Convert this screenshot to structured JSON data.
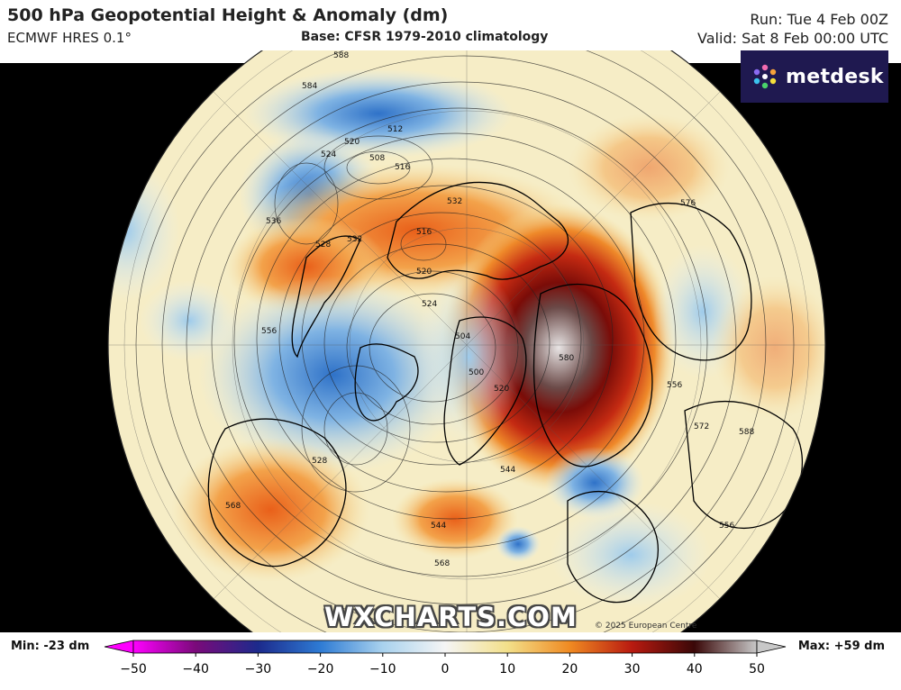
{
  "header": {
    "title": "500 hPa Geopotential Height & Anomaly (dm)",
    "model": "ECMWF HRES 0.1°",
    "base": "Base: CFSR 1979-2010 climatology",
    "run": "Run: Tue 4 Feb 00Z",
    "valid": "Valid: Sat 8 Feb 00:00 UTC"
  },
  "logo": {
    "text": "metdesk",
    "bg": "#1f1950"
  },
  "watermark": "WXCHARTS.COM",
  "copyright": "© 2025 European Centre",
  "colorbar": {
    "min_label": "Min: -23 dm",
    "max_label": "Max: +59 dm",
    "ticks": [
      "−50",
      "−40",
      "−30",
      "−20",
      "−10",
      "0",
      "10",
      "20",
      "30",
      "40",
      "50"
    ],
    "range": [
      -50,
      50
    ],
    "stops": [
      {
        "v": -50,
        "c": "#ff00ff"
      },
      {
        "v": -40,
        "c": "#7a0a7a"
      },
      {
        "v": -30,
        "c": "#1c2a8c"
      },
      {
        "v": -20,
        "c": "#2e7bd4"
      },
      {
        "v": -10,
        "c": "#a9d2ee"
      },
      {
        "v": 0,
        "c": "#f5f5f5"
      },
      {
        "v": 10,
        "c": "#f3e08a"
      },
      {
        "v": 20,
        "c": "#f08a22"
      },
      {
        "v": 30,
        "c": "#b81a10"
      },
      {
        "v": 40,
        "c": "#3a0808"
      },
      {
        "v": 50,
        "c": "#c8c8c8"
      }
    ]
  },
  "contour_labels": [
    "588",
    "584",
    "524",
    "520",
    "512",
    "508",
    "516",
    "536",
    "532",
    "528",
    "516",
    "520",
    "532",
    "556",
    "524",
    "504",
    "580",
    "500",
    "520",
    "528",
    "556",
    "544",
    "568",
    "544",
    "576",
    "588",
    "572",
    "556",
    "568"
  ],
  "anomaly_centers": [
    {
      "name": "siberia-positive",
      "value": "580"
    },
    {
      "name": "greenland-negative",
      "value": "500"
    }
  ]
}
